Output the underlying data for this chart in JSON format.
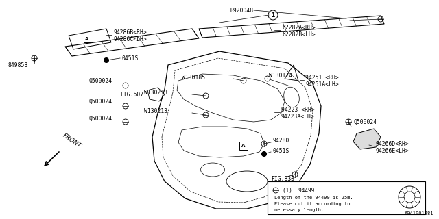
{
  "bg_color": "#ffffff",
  "line_color": "#000000",
  "text_color": "#000000",
  "diagram_number": "A941001281",
  "note_lines": [
    "(1)  94499",
    "Length of the 94499 is 25m.",
    "Please cut it according to",
    "necessary length."
  ]
}
